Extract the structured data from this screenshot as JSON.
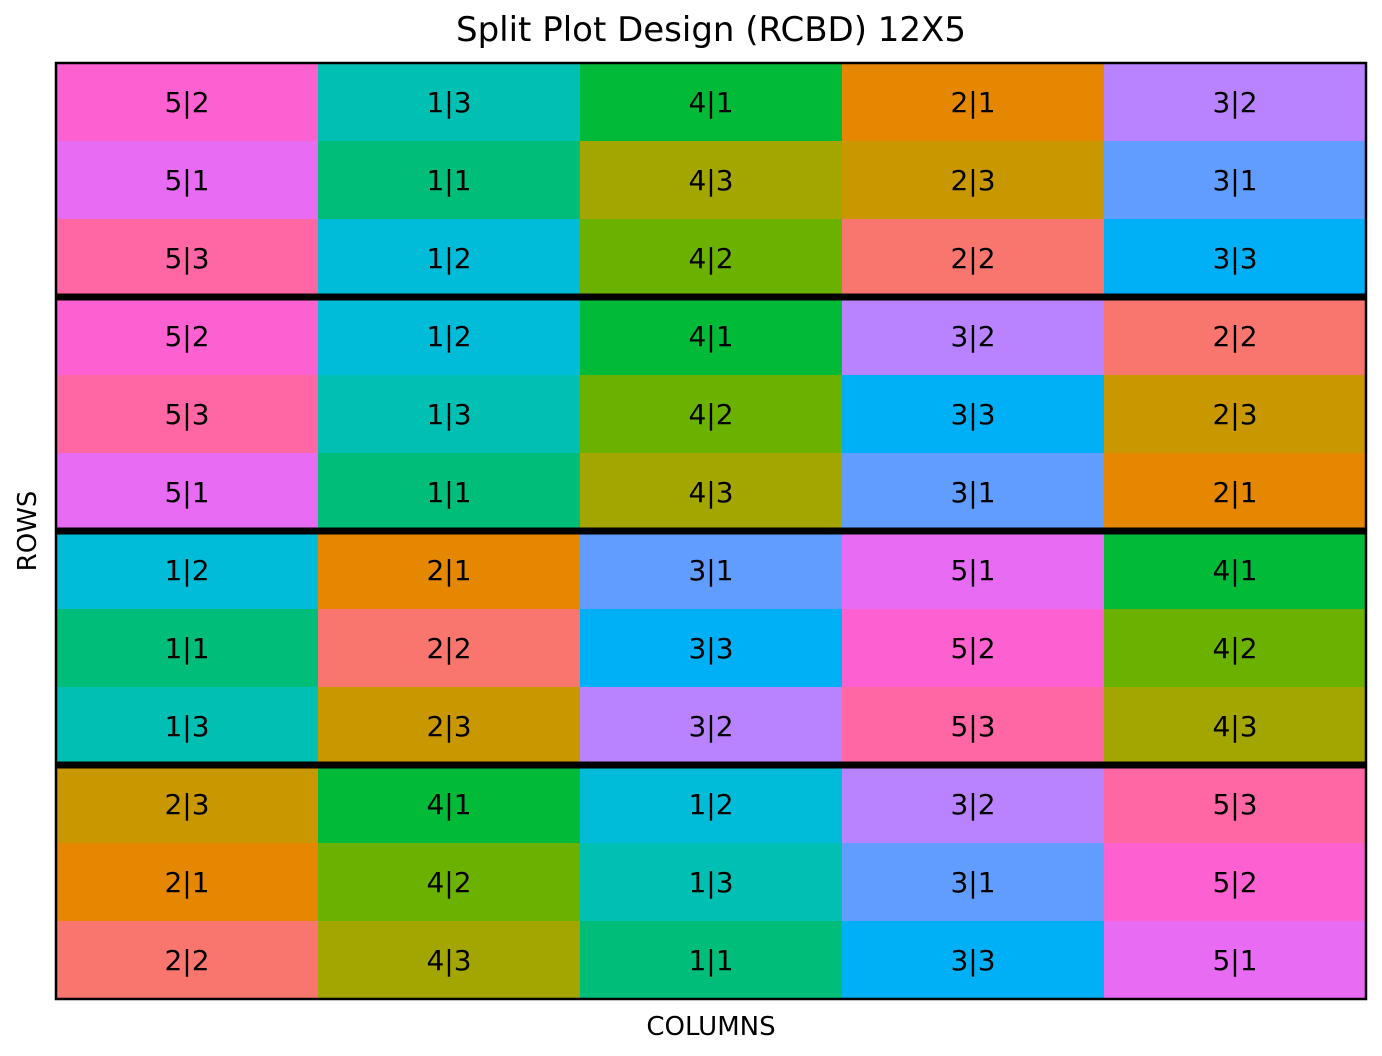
{
  "chart_data": {
    "type": "heatmap",
    "title": "Split Plot Design (RCBD) 12X5",
    "xlabel": "COLUMNS",
    "ylabel": "ROWS",
    "n_rows": 12,
    "n_cols": 5,
    "grid": false,
    "legend": "none",
    "block_size_rows": 3,
    "cells": [
      [
        "5|2",
        "1|3",
        "4|1",
        "2|1",
        "3|2"
      ],
      [
        "5|1",
        "1|1",
        "4|3",
        "2|3",
        "3|1"
      ],
      [
        "5|3",
        "1|2",
        "4|2",
        "2|2",
        "3|3"
      ],
      [
        "5|2",
        "1|2",
        "4|1",
        "3|2",
        "2|2"
      ],
      [
        "5|3",
        "1|3",
        "4|2",
        "3|3",
        "2|3"
      ],
      [
        "5|1",
        "1|1",
        "4|3",
        "3|1",
        "2|1"
      ],
      [
        "1|2",
        "2|1",
        "3|1",
        "5|1",
        "4|1"
      ],
      [
        "1|1",
        "2|2",
        "3|3",
        "5|2",
        "4|2"
      ],
      [
        "1|3",
        "2|3",
        "3|2",
        "5|3",
        "4|3"
      ],
      [
        "2|3",
        "4|1",
        "1|2",
        "3|2",
        "5|3"
      ],
      [
        "2|1",
        "4|2",
        "1|3",
        "3|1",
        "5|2"
      ],
      [
        "2|2",
        "4|3",
        "1|1",
        "3|3",
        "5|1"
      ]
    ],
    "treatment_colors": {
      "1|1": "#00BE7A",
      "1|2": "#00BCD8",
      "1|3": "#00C0B3",
      "2|1": "#E58700",
      "2|2": "#F8766D",
      "2|3": "#C99800",
      "3|1": "#619CFF",
      "3|2": "#B983FF",
      "3|3": "#00B0F6",
      "4|1": "#00BA38",
      "4|2": "#6BB100",
      "4|3": "#A3A500",
      "5|1": "#E76BF3",
      "5|2": "#FD61D1",
      "5|3": "#FF67A4"
    },
    "block_line_color": "#000000"
  }
}
